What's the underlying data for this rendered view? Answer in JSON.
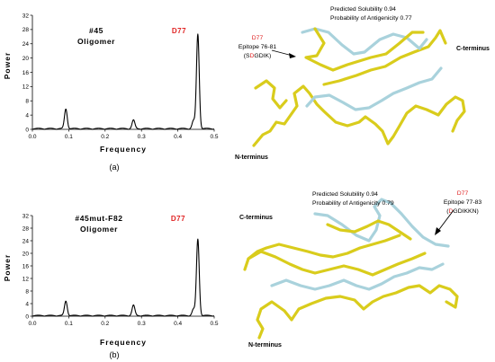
{
  "chart_data": [
    {
      "type": "line",
      "panel_label": "(a)",
      "title_line1": "#45",
      "title_line2": "Oligomer",
      "peak_label": "D77",
      "xlabel": "Frequency",
      "ylabel": "Power",
      "xlim": [
        0.0,
        0.5
      ],
      "ylim": [
        0,
        32
      ],
      "xticks": [
        "0.0",
        "0.1",
        "0.2",
        "0.3",
        "0.4",
        "0.5"
      ],
      "yticks": [
        "0",
        "4",
        "8",
        "12",
        "16",
        "20",
        "24",
        "28",
        "32"
      ],
      "grid": false,
      "peaks": [
        {
          "x": 0.092,
          "y": 5.5
        },
        {
          "x": 0.278,
          "y": 2.4
        },
        {
          "x": 0.443,
          "y": 2.2
        },
        {
          "x": 0.455,
          "y": 26.5
        }
      ]
    },
    {
      "type": "line",
      "panel_label": "(b)",
      "title_line1": "#45mut-F82",
      "title_line2": "Oligomer",
      "peak_label": "D77",
      "xlabel": "Frequency",
      "ylabel": "Power",
      "xlim": [
        0.0,
        0.5
      ],
      "ylim": [
        0,
        32
      ],
      "xticks": [
        "0.0",
        "0.1",
        "0.2",
        "0.3",
        "0.4",
        "0.5"
      ],
      "yticks": [
        "0",
        "4",
        "8",
        "12",
        "16",
        "20",
        "24",
        "28",
        "32"
      ],
      "grid": false,
      "peaks": [
        {
          "x": 0.092,
          "y": 4.6
        },
        {
          "x": 0.278,
          "y": 3.3
        },
        {
          "x": 0.443,
          "y": 2.0
        },
        {
          "x": 0.455,
          "y": 24.3
        }
      ]
    }
  ],
  "structures": [
    {
      "solubility": "Predicted Solubility 0.94",
      "antigenicity": "Probability of Antigenicity 0.77",
      "residue": "D77",
      "epitope": "Epitope 76-81",
      "seq_open": "(",
      "seq_pre": "S",
      "seq_red": "D",
      "seq_post": "GDIK)",
      "c_terminus": "C-terminus",
      "n_terminus": "N-terminus",
      "colors": {
        "helix": "#d9cc1c",
        "loop": "#a9d2dc"
      }
    },
    {
      "solubility": "Predicted Solubility 0.94",
      "antigenicity": "Probability of Antigenicity 0.79",
      "residue": "D77",
      "epitope": "Epitope 77-83",
      "seq_open": "(",
      "seq_pre": "",
      "seq_red": "D",
      "seq_post": "GDIKKN)",
      "c_terminus": "C-terminus",
      "n_terminus": "N-terminus",
      "colors": {
        "helix": "#d9cc1c",
        "loop": "#a9d2dc"
      }
    }
  ]
}
